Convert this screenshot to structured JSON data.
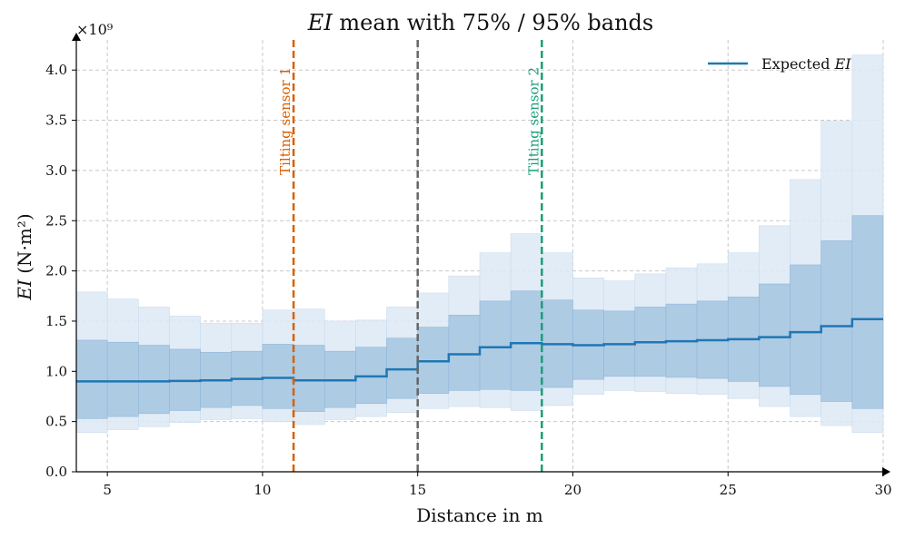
{
  "chart_data": {
    "type": "area",
    "title_var": "EI",
    "title_rest": " mean with 75% / 95% bands",
    "xlabel": "Distance in m",
    "ylabel_var": "EI",
    "ylabel_unit": "(N·m²)",
    "y_multiplier": "×10⁹",
    "xlim": [
      4,
      30
    ],
    "ylim": [
      0,
      4.3
    ],
    "xticks": [
      5,
      10,
      15,
      20,
      25,
      30
    ],
    "yticks": [
      "0.0",
      "0.5",
      "1.0",
      "1.5",
      "2.0",
      "2.5",
      "3.0",
      "3.5",
      "4.0"
    ],
    "grid": true,
    "legend_position": "top-right",
    "legend_label": "Expected ",
    "legend_var": "EI",
    "colors": {
      "mean": "#1f77b4",
      "band75": "#a9c8e2",
      "band95": "#dde9f5",
      "sensor1": "#d95f02",
      "sensor2": "#1b9e77",
      "midline": "#666666"
    },
    "bins": [
      {
        "x0": 4,
        "x1": 5,
        "mean": 0.9,
        "q75": [
          0.53,
          1.31
        ],
        "q95": [
          0.39,
          1.79
        ]
      },
      {
        "x0": 5,
        "x1": 6,
        "mean": 0.9,
        "q75": [
          0.55,
          1.29
        ],
        "q95": [
          0.42,
          1.72
        ]
      },
      {
        "x0": 6,
        "x1": 7,
        "mean": 0.9,
        "q75": [
          0.58,
          1.26
        ],
        "q95": [
          0.45,
          1.64
        ]
      },
      {
        "x0": 7,
        "x1": 8,
        "mean": 0.905,
        "q75": [
          0.61,
          1.22
        ],
        "q95": [
          0.49,
          1.55
        ]
      },
      {
        "x0": 8,
        "x1": 9,
        "mean": 0.91,
        "q75": [
          0.64,
          1.19
        ],
        "q95": [
          0.52,
          1.48
        ]
      },
      {
        "x0": 9,
        "x1": 10,
        "mean": 0.925,
        "q75": [
          0.66,
          1.2
        ],
        "q95": [
          0.53,
          1.48
        ]
      },
      {
        "x0": 10,
        "x1": 11,
        "mean": 0.935,
        "q75": [
          0.63,
          1.27
        ],
        "q95": [
          0.5,
          1.61
        ]
      },
      {
        "x0": 11,
        "x1": 12,
        "mean": 0.91,
        "q75": [
          0.6,
          1.26
        ],
        "q95": [
          0.47,
          1.62
        ]
      },
      {
        "x0": 12,
        "x1": 13,
        "mean": 0.91,
        "q75": [
          0.64,
          1.2
        ],
        "q95": [
          0.52,
          1.5
        ]
      },
      {
        "x0": 13,
        "x1": 14,
        "mean": 0.95,
        "q75": [
          0.68,
          1.24
        ],
        "q95": [
          0.55,
          1.51
        ]
      },
      {
        "x0": 14,
        "x1": 15,
        "mean": 1.02,
        "q75": [
          0.73,
          1.33
        ],
        "q95": [
          0.59,
          1.64
        ]
      },
      {
        "x0": 15,
        "x1": 16,
        "mean": 1.1,
        "q75": [
          0.78,
          1.44
        ],
        "q95": [
          0.63,
          1.78
        ]
      },
      {
        "x0": 16,
        "x1": 17,
        "mean": 1.17,
        "q75": [
          0.81,
          1.56
        ],
        "q95": [
          0.65,
          1.95
        ]
      },
      {
        "x0": 17,
        "x1": 18,
        "mean": 1.24,
        "q75": [
          0.82,
          1.7
        ],
        "q95": [
          0.64,
          2.18
        ]
      },
      {
        "x0": 18,
        "x1": 19,
        "mean": 1.28,
        "q75": [
          0.81,
          1.8
        ],
        "q95": [
          0.61,
          2.37
        ]
      },
      {
        "x0": 19,
        "x1": 20,
        "mean": 1.27,
        "q75": [
          0.84,
          1.71
        ],
        "q95": [
          0.66,
          2.18
        ]
      },
      {
        "x0": 20,
        "x1": 21,
        "mean": 1.26,
        "q75": [
          0.92,
          1.61
        ],
        "q95": [
          0.77,
          1.93
        ]
      },
      {
        "x0": 21,
        "x1": 22,
        "mean": 1.27,
        "q75": [
          0.95,
          1.6
        ],
        "q95": [
          0.81,
          1.9
        ]
      },
      {
        "x0": 22,
        "x1": 23,
        "mean": 1.29,
        "q75": [
          0.95,
          1.64
        ],
        "q95": [
          0.8,
          1.97
        ]
      },
      {
        "x0": 23,
        "x1": 24,
        "mean": 1.3,
        "q75": [
          0.94,
          1.67
        ],
        "q95": [
          0.78,
          2.03
        ]
      },
      {
        "x0": 24,
        "x1": 25,
        "mean": 1.31,
        "q75": [
          0.93,
          1.7
        ],
        "q95": [
          0.77,
          2.07
        ]
      },
      {
        "x0": 25,
        "x1": 26,
        "mean": 1.32,
        "q75": [
          0.9,
          1.74
        ],
        "q95": [
          0.73,
          2.18
        ]
      },
      {
        "x0": 26,
        "x1": 27,
        "mean": 1.34,
        "q75": [
          0.85,
          1.87
        ],
        "q95": [
          0.65,
          2.45
        ]
      },
      {
        "x0": 27,
        "x1": 28,
        "mean": 1.39,
        "q75": [
          0.77,
          2.06
        ],
        "q95": [
          0.55,
          2.91
        ]
      },
      {
        "x0": 28,
        "x1": 29,
        "mean": 1.45,
        "q75": [
          0.7,
          2.3
        ],
        "q95": [
          0.46,
          3.49
        ]
      },
      {
        "x0": 29,
        "x1": 30,
        "mean": 1.52,
        "q75": [
          0.63,
          2.55
        ],
        "q95": [
          0.39,
          4.15
        ]
      }
    ],
    "vlines": [
      {
        "x": 11,
        "color_key": "sensor1",
        "label": "Tilting sensor 1"
      },
      {
        "x": 15,
        "color_key": "midline",
        "label": ""
      },
      {
        "x": 19,
        "color_key": "sensor2",
        "label": "Tilting sensor 2"
      }
    ]
  }
}
